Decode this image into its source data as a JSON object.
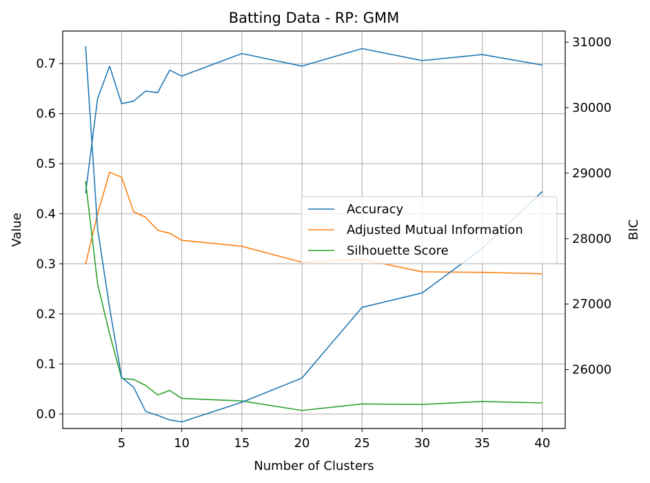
{
  "chart_data": {
    "type": "line",
    "title": "Batting Data - RP: GMM",
    "xlabel": "Number of Clusters",
    "ylabel": "Value",
    "y2label": "BIC",
    "x": [
      2,
      3,
      4,
      5,
      6,
      7,
      8,
      9,
      10,
      15,
      20,
      25,
      30,
      35,
      40
    ],
    "xticks": [
      5,
      10,
      15,
      20,
      25,
      30,
      35,
      40
    ],
    "xlim": [
      0.1,
      41.9
    ],
    "ylim": [
      -0.029,
      0.765
    ],
    "yticks": [
      0.0,
      0.1,
      0.2,
      0.3,
      0.4,
      0.5,
      0.6,
      0.7
    ],
    "ytick_labels": [
      "0.0",
      "0.1",
      "0.2",
      "0.3",
      "0.4",
      "0.5",
      "0.6",
      "0.7"
    ],
    "y2lim": [
      25100,
      31170
    ],
    "y2ticks": [
      26000,
      27000,
      28000,
      29000,
      30000,
      31000
    ],
    "y2tick_labels": [
      "26000",
      "27000",
      "28000",
      "29000",
      "30000",
      "31000"
    ],
    "grid": true,
    "legend_position": "center-right",
    "series": [
      {
        "name": "Accuracy",
        "axis": "left",
        "color": "#1f77b4",
        "values": [
          0.441,
          0.63,
          0.695,
          0.62,
          0.625,
          0.645,
          0.642,
          0.687,
          0.675,
          0.72,
          0.695,
          0.73,
          0.706,
          0.718,
          0.697
        ]
      },
      {
        "name": "Adjusted Mutual Information",
        "axis": "left",
        "color": "#ff7f0e",
        "values": [
          0.299,
          0.4,
          0.483,
          0.473,
          0.404,
          0.393,
          0.367,
          0.361,
          0.347,
          0.335,
          0.303,
          0.309,
          0.284,
          0.283,
          0.28
        ]
      },
      {
        "name": "Silhouette Score",
        "axis": "left",
        "color": "#2ca02c",
        "values": [
          0.465,
          0.26,
          0.16,
          0.071,
          0.069,
          0.057,
          0.038,
          0.047,
          0.031,
          0.026,
          0.007,
          0.02,
          0.019,
          0.025,
          0.022
        ]
      },
      {
        "name": "",
        "axis": "right",
        "color": "#1f77b4",
        "values": [
          30940,
          28150,
          26940,
          25880,
          25730,
          25360,
          25300,
          25230,
          25200,
          25500,
          25870,
          26950,
          27170,
          27850,
          28720
        ]
      }
    ],
    "legend": [
      "Accuracy",
      "Adjusted Mutual Information",
      "Silhouette Score"
    ]
  }
}
